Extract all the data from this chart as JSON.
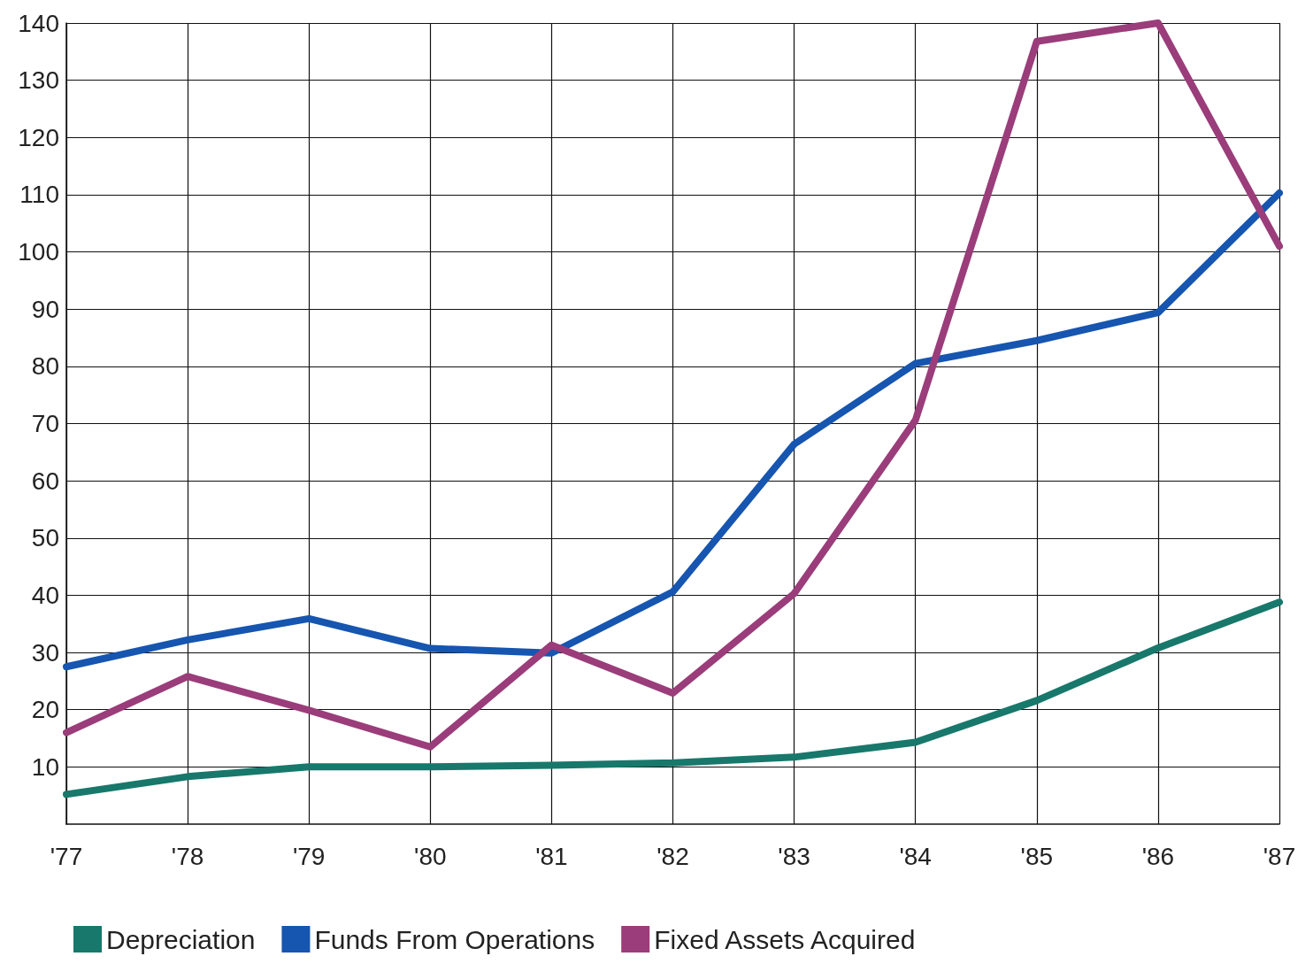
{
  "chart_data": {
    "type": "line",
    "categories": [
      "'77",
      "'78",
      "'79",
      "'80",
      "'81",
      "'82",
      "'83",
      "'84",
      "'85",
      "'86",
      "'87"
    ],
    "series": [
      {
        "name": "Depreciation",
        "color": "#17786b",
        "values": [
          5.2,
          8.3,
          10,
          10,
          10.3,
          10.7,
          11.7,
          14.3,
          21.6,
          30.8,
          38.8
        ]
      },
      {
        "name": "Funds From Operations",
        "color": "#1655b0",
        "values": [
          27.5,
          32.2,
          35.9,
          30.7,
          29.9,
          40.6,
          66.4,
          80.5,
          84.5,
          89.4,
          110.3
        ]
      },
      {
        "name": "Fixed Assets Acquired",
        "color": "#9a3d7a",
        "values": [
          16,
          25.8,
          19.9,
          13.5,
          31.3,
          22.9,
          40.3,
          70.6,
          136.8,
          140,
          101
        ]
      }
    ],
    "ylim": [
      0,
      140
    ],
    "yticks": [
      10,
      20,
      30,
      40,
      50,
      60,
      70,
      80,
      90,
      100,
      110,
      120,
      130,
      140
    ],
    "grid": true,
    "legend": "bottom left",
    "marker": "none",
    "line_style": "solid"
  }
}
